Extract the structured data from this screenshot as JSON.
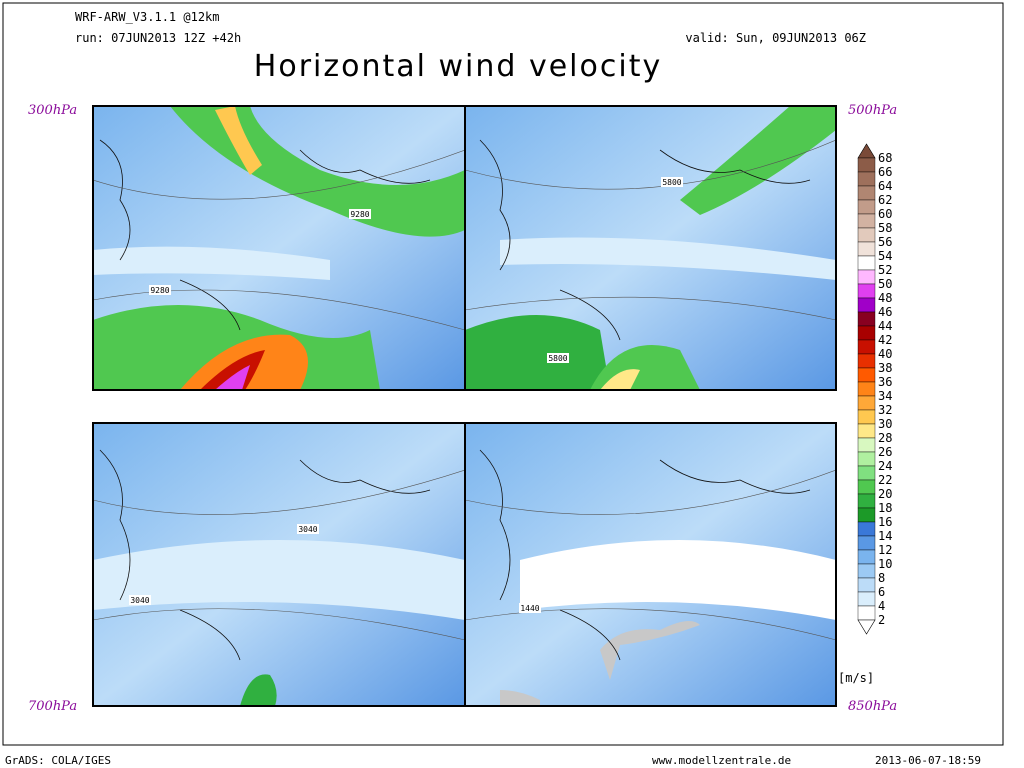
{
  "header": {
    "model": "WRF-ARW_V3.1.1 @12km",
    "run": "run: 07JUN2013 12Z +42h",
    "valid": "valid: Sun, 09JUN2013 06Z",
    "title": "Horizontal wind velocity"
  },
  "panels": [
    {
      "level": "300hPa",
      "contour_labels": [
        "9280",
        "9280"
      ]
    },
    {
      "level": "500hPa",
      "contour_labels": [
        "5800",
        "5800"
      ]
    },
    {
      "level": "700hPa",
      "contour_labels": [
        "3040",
        "3040"
      ]
    },
    {
      "level": "850hPa",
      "contour_labels": [
        "1440"
      ]
    }
  ],
  "colorbar": {
    "unit": "[m/s]",
    "levels": [
      "68",
      "66",
      "64",
      "62",
      "60",
      "58",
      "56",
      "54",
      "52",
      "50",
      "48",
      "46",
      "44",
      "42",
      "40",
      "38",
      "36",
      "34",
      "32",
      "30",
      "28",
      "26",
      "24",
      "22",
      "20",
      "18",
      "16",
      "14",
      "12",
      "10",
      "8",
      "6",
      "4",
      "2"
    ],
    "colors": [
      "#7a4a38",
      "#8c5c48",
      "#9e705c",
      "#b08672",
      "#c29c8a",
      "#d2b2a2",
      "#e2cabc",
      "#f0e2da",
      "#ffffff",
      "#ffb8ff",
      "#e040f0",
      "#a000c8",
      "#880020",
      "#a80000",
      "#c81000",
      "#e83000",
      "#ff5a00",
      "#ff8418",
      "#ffa838",
      "#ffc850",
      "#ffe888",
      "#d8f8c0",
      "#b0f0a0",
      "#80e080",
      "#50c850",
      "#30b040",
      "#1c9a28",
      "#3a78d8",
      "#5a98e4",
      "#7ab4ee",
      "#9ccaf4",
      "#bcdcf8",
      "#daeefc",
      "#ffffff"
    ]
  },
  "footer": {
    "left": "GrADS: COLA/IGES",
    "center": "www.modellzentrale.de",
    "right": "2013-06-07-18:59"
  }
}
